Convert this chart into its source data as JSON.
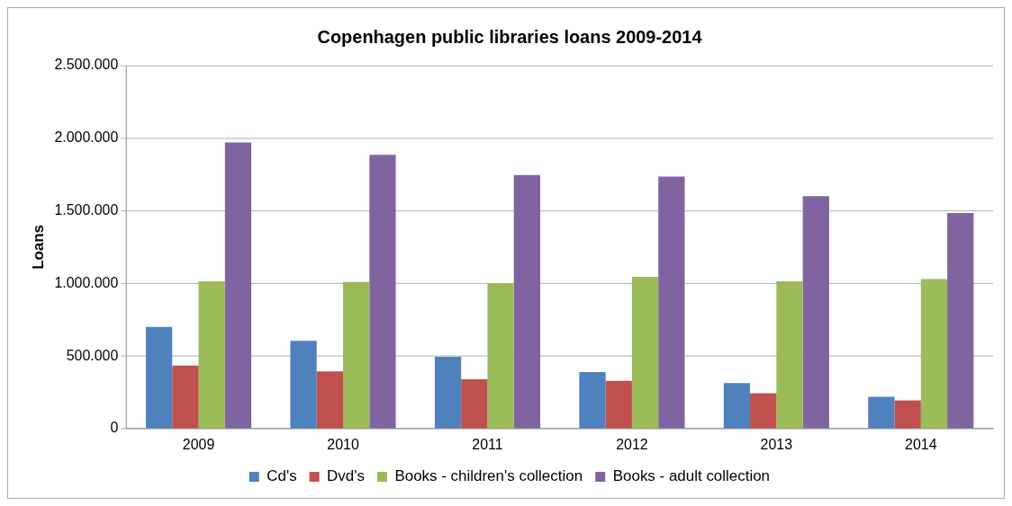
{
  "chart_data": {
    "type": "bar",
    "title": "Copenhagen public libraries loans 2009-2014",
    "ylabel": "Loans",
    "categories": [
      "2009",
      "2010",
      "2011",
      "2012",
      "2013",
      "2014"
    ],
    "series": [
      {
        "name": "Cd's",
        "color": "#4f81bd",
        "values": [
          700000,
          605000,
          495000,
          390000,
          315000,
          220000
        ]
      },
      {
        "name": "Dvd's",
        "color": "#c0504d",
        "values": [
          435000,
          395000,
          340000,
          330000,
          245000,
          195000
        ]
      },
      {
        "name": "Books - children's collection",
        "color": "#9bbb59",
        "values": [
          1015000,
          1010000,
          1000000,
          1045000,
          1015000,
          1030000
        ]
      },
      {
        "name": "Books - adult collection",
        "color": "#8064a2",
        "values": [
          1970000,
          1885000,
          1745000,
          1735000,
          1600000,
          1485000
        ]
      }
    ],
    "ylim": [
      0,
      2500000
    ],
    "yticks": [
      {
        "value": 0,
        "label": "0"
      },
      {
        "value": 500000,
        "label": "500.000"
      },
      {
        "value": 1000000,
        "label": "1.000.000"
      },
      {
        "value": 1500000,
        "label": "1.500.000"
      },
      {
        "value": 2000000,
        "label": "2.000.000"
      },
      {
        "value": 2500000,
        "label": "2.500.000"
      }
    ],
    "grid": "y",
    "legend": "bottom"
  }
}
